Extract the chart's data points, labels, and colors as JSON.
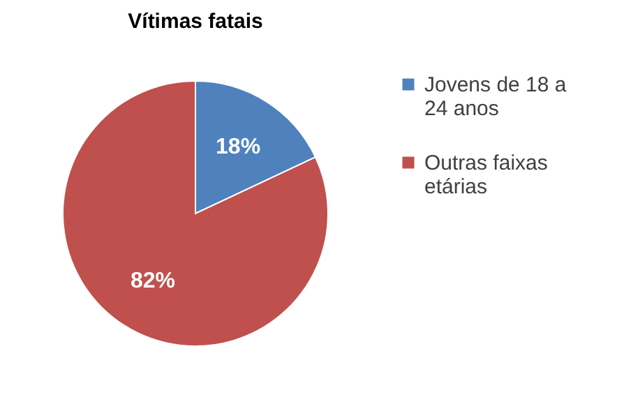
{
  "chart_data": {
    "type": "pie",
    "title": "Vítimas fatais",
    "categories": [
      "Jovens de 18 a 24 anos",
      "Outras faixas etárias"
    ],
    "values": [
      18,
      82
    ],
    "colors": [
      "#4f81bd",
      "#c0504d"
    ],
    "value_labels": [
      "18%",
      "82%"
    ],
    "legend": "right"
  }
}
